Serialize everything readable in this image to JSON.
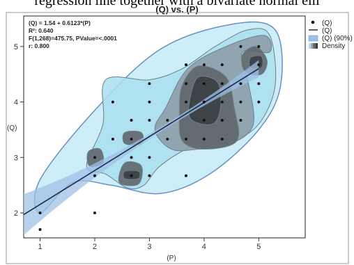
{
  "page": {
    "caption_fragment": "regression line together with a bivariate normal elli"
  },
  "chart_data": {
    "type": "scatter",
    "title": "(Q) vs. (P)",
    "xlabel": "(P)",
    "ylabel": "(Q)",
    "xlim": [
      0.7,
      5.85
    ],
    "ylim": [
      1.55,
      5.55
    ],
    "x_ticks": [
      1,
      2,
      3,
      4,
      5
    ],
    "y_ticks": [
      2,
      3,
      4,
      5
    ],
    "grid": false,
    "legend_position": "right",
    "stats": [
      "(Q) = 1.54 + 0.6123*(P)",
      "R²: 0.640",
      "F(1,268)=475.75, PValue=<.0001",
      "r: 0.800"
    ],
    "fit": {
      "intercept": 1.54,
      "slope": 0.6123,
      "x_range": [
        0.7,
        5.0
      ]
    },
    "ellipse": {
      "level": "90%",
      "points": [
        [
          1.0,
          2.0
        ],
        [
          1.6,
          2.55
        ],
        [
          2.3,
          2.5
        ],
        [
          3.2,
          2.35
        ],
        [
          4.1,
          2.7
        ],
        [
          5.0,
          3.5
        ],
        [
          5.4,
          4.3
        ],
        [
          5.3,
          5.3
        ],
        [
          4.5,
          5.4
        ],
        [
          3.2,
          4.95
        ],
        [
          2.0,
          3.85
        ],
        [
          1.0,
          2.6
        ]
      ]
    },
    "density": {
      "levels": [
        {
          "name": "outer",
          "polys": [
            [
              [
                1.85,
                2.85
              ],
              [
                2.2,
                2.7
              ],
              [
                2.6,
                2.45
              ],
              [
                2.9,
                2.5
              ],
              [
                3.2,
                2.85
              ],
              [
                3.8,
                3.2
              ],
              [
                4.5,
                3.3
              ],
              [
                5.0,
                3.6
              ],
              [
                5.3,
                4.3
              ],
              [
                5.2,
                5.2
              ],
              [
                4.8,
                5.3
              ],
              [
                4.2,
                5.0
              ],
              [
                3.6,
                4.6
              ],
              [
                3.0,
                4.4
              ],
              [
                2.2,
                4.4
              ],
              [
                2.15,
                3.6
              ]
            ]
          ]
        },
        {
          "name": "mid",
          "polys": [
            [
              [
                3.1,
                3.5
              ],
              [
                3.4,
                3.15
              ],
              [
                3.9,
                3.15
              ],
              [
                4.5,
                3.25
              ],
              [
                4.9,
                3.6
              ],
              [
                4.8,
                4.4
              ],
              [
                4.7,
                4.9
              ],
              [
                5.2,
                4.9
              ],
              [
                5.1,
                5.2
              ],
              [
                4.4,
                5.0
              ],
              [
                3.7,
                4.6
              ],
              [
                3.3,
                3.9
              ]
            ]
          ]
        },
        {
          "name": "inner",
          "polys": [
            [
              [
                3.6,
                3.3
              ],
              [
                4.0,
                3.15
              ],
              [
                4.6,
                3.3
              ],
              [
                4.55,
                3.9
              ],
              [
                4.4,
                4.45
              ],
              [
                3.9,
                4.65
              ],
              [
                3.6,
                4.3
              ],
              [
                3.55,
                3.8
              ]
            ],
            [
              [
                4.75,
                4.55
              ],
              [
                5.05,
                4.5
              ],
              [
                5.15,
                4.75
              ],
              [
                4.95,
                5.0
              ],
              [
                4.7,
                4.85
              ]
            ],
            [
              [
                2.45,
                2.55
              ],
              [
                2.8,
                2.52
              ],
              [
                2.85,
                2.85
              ],
              [
                2.55,
                2.9
              ]
            ],
            [
              [
                1.9,
                2.85
              ],
              [
                2.15,
                2.9
              ],
              [
                2.1,
                3.15
              ],
              [
                1.88,
                3.1
              ]
            ],
            [
              [
                2.55,
                3.25
              ],
              [
                2.85,
                3.25
              ],
              [
                2.85,
                3.45
              ],
              [
                2.55,
                3.45
              ]
            ]
          ]
        },
        {
          "name": "core",
          "polys": [
            [
              [
                3.75,
                3.7
              ],
              [
                4.15,
                3.6
              ],
              [
                4.3,
                3.9
              ],
              [
                4.25,
                4.35
              ],
              [
                3.9,
                4.45
              ],
              [
                3.75,
                4.1
              ]
            ],
            [
              [
                4.85,
                4.62
              ],
              [
                5.05,
                4.62
              ],
              [
                5.05,
                4.82
              ],
              [
                4.85,
                4.8
              ]
            ],
            [
              [
                2.55,
                2.62
              ],
              [
                2.8,
                2.62
              ],
              [
                2.8,
                2.75
              ],
              [
                2.55,
                2.75
              ]
            ]
          ]
        }
      ]
    },
    "points": [
      [
        1.0,
        2.0
      ],
      [
        1.0,
        1.7
      ],
      [
        2.0,
        2.0
      ],
      [
        2.0,
        3.0
      ],
      [
        2.33,
        3.33
      ],
      [
        2.33,
        4.0
      ],
      [
        2.67,
        2.67
      ],
      [
        2.67,
        3.0
      ],
      [
        2.67,
        3.33
      ],
      [
        2.67,
        3.67
      ],
      [
        2.0,
        2.67
      ],
      [
        3.0,
        2.67
      ],
      [
        3.0,
        3.0
      ],
      [
        3.0,
        3.67
      ],
      [
        3.0,
        4.0
      ],
      [
        3.0,
        4.33
      ],
      [
        3.33,
        3.33
      ],
      [
        3.33,
        3.67
      ],
      [
        3.67,
        2.67
      ],
      [
        3.67,
        3.33
      ],
      [
        3.67,
        4.0
      ],
      [
        3.67,
        4.33
      ],
      [
        3.67,
        4.67
      ],
      [
        4.0,
        3.33
      ],
      [
        4.0,
        3.67
      ],
      [
        4.0,
        4.0
      ],
      [
        4.0,
        4.33
      ],
      [
        4.0,
        4.67
      ],
      [
        4.33,
        3.33
      ],
      [
        4.33,
        3.67
      ],
      [
        4.33,
        4.0
      ],
      [
        4.33,
        4.33
      ],
      [
        4.33,
        4.67
      ],
      [
        4.67,
        3.67
      ],
      [
        4.67,
        4.0
      ],
      [
        4.67,
        4.33
      ],
      [
        4.67,
        5.0
      ],
      [
        5.0,
        4.0
      ],
      [
        5.0,
        4.33
      ],
      [
        5.0,
        4.67
      ],
      [
        5.0,
        5.0
      ]
    ],
    "legend": [
      {
        "label": "(Q)",
        "kind": "dot"
      },
      {
        "label": "(Q)",
        "kind": "line"
      },
      {
        "label": "(Q) (90%)",
        "kind": "band"
      },
      {
        "label": "Density",
        "kind": "density"
      }
    ]
  },
  "colors": {
    "ellipse_fill": "#cdeef9",
    "ellipse_stroke": "#6a8fc4",
    "fit_line": "#1b2a4a",
    "band": "#9fc0e6",
    "density": [
      "#a9dfee",
      "#8e9fa8",
      "#5f666c",
      "#3a3f44"
    ],
    "points": "#111111",
    "frame": "#222222"
  }
}
